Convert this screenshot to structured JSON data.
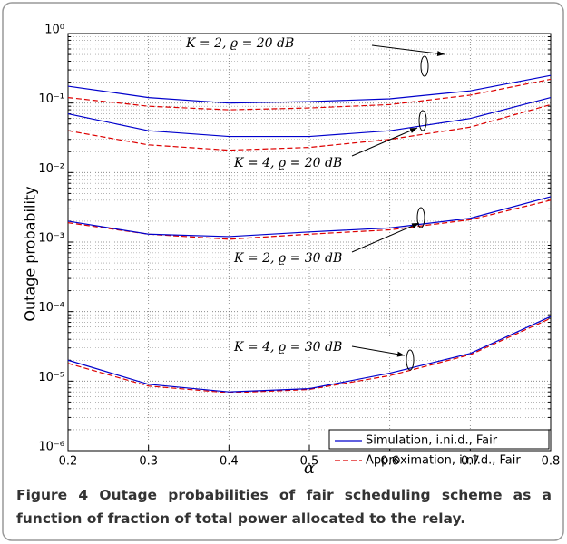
{
  "chart_data": {
    "type": "line",
    "y_scale": "log",
    "grid": true,
    "minor_grid": true,
    "xlabel": "α",
    "ylabel": "Outage probability",
    "x": [
      0.2,
      0.3,
      0.4,
      0.5,
      0.6,
      0.7,
      0.8
    ],
    "xlim": [
      0.2,
      0.8
    ],
    "xticks": [
      0.2,
      0.3,
      0.4,
      0.5,
      0.6,
      0.7,
      0.8
    ],
    "ylim": [
      1e-06,
      1
    ],
    "yticks": [
      {
        "value": 1e-06,
        "label": "10⁻⁶"
      },
      {
        "value": 1e-05,
        "label": "10⁻⁵"
      },
      {
        "value": 0.0001,
        "label": "10⁻⁴"
      },
      {
        "value": 0.001,
        "label": "10⁻³"
      },
      {
        "value": 0.01,
        "label": "10⁻²"
      },
      {
        "value": 0.1,
        "label": "10⁻¹"
      },
      {
        "value": 1,
        "label": "10⁰"
      }
    ],
    "legend_position": "lower right",
    "legend": {
      "simulation": {
        "name": "Simulation, i.ni.d., Fair",
        "color": "#0000cc"
      },
      "approximation": {
        "name": "Approximation, i.ni.d., Fair",
        "color": "#dd0000"
      }
    },
    "groups": [
      {
        "label": "K = 2, ϱ = 20 dB",
        "simulation": [
          0.175,
          0.12,
          0.1,
          0.105,
          0.115,
          0.15,
          0.25
        ],
        "approximation": [
          0.12,
          0.09,
          0.08,
          0.085,
          0.095,
          0.13,
          0.22
        ]
      },
      {
        "label": "K = 4, ϱ = 20 dB",
        "simulation": [
          0.07,
          0.04,
          0.033,
          0.033,
          0.04,
          0.06,
          0.12
        ],
        "approximation": [
          0.04,
          0.025,
          0.021,
          0.023,
          0.03,
          0.045,
          0.095
        ]
      },
      {
        "label": "K = 2, ϱ = 30 dB",
        "simulation": [
          0.002,
          0.0013,
          0.0012,
          0.0014,
          0.0016,
          0.0022,
          0.0045
        ],
        "approximation": [
          0.0019,
          0.0013,
          0.0011,
          0.0013,
          0.0015,
          0.0021,
          0.004
        ]
      },
      {
        "label": "K = 4, ϱ = 30 dB",
        "simulation": [
          2e-05,
          9e-06,
          7e-06,
          7.8e-06,
          1.3e-05,
          2.5e-05,
          8.5e-05
        ],
        "approximation": [
          1.8e-05,
          8.5e-06,
          6.8e-06,
          7.6e-06,
          1.2e-05,
          2.4e-05,
          8e-05
        ]
      }
    ]
  },
  "caption": {
    "label": "Figure 4",
    "text": "Outage probabilities of fair scheduling scheme as a function of fraction of total power allocated to the relay."
  }
}
